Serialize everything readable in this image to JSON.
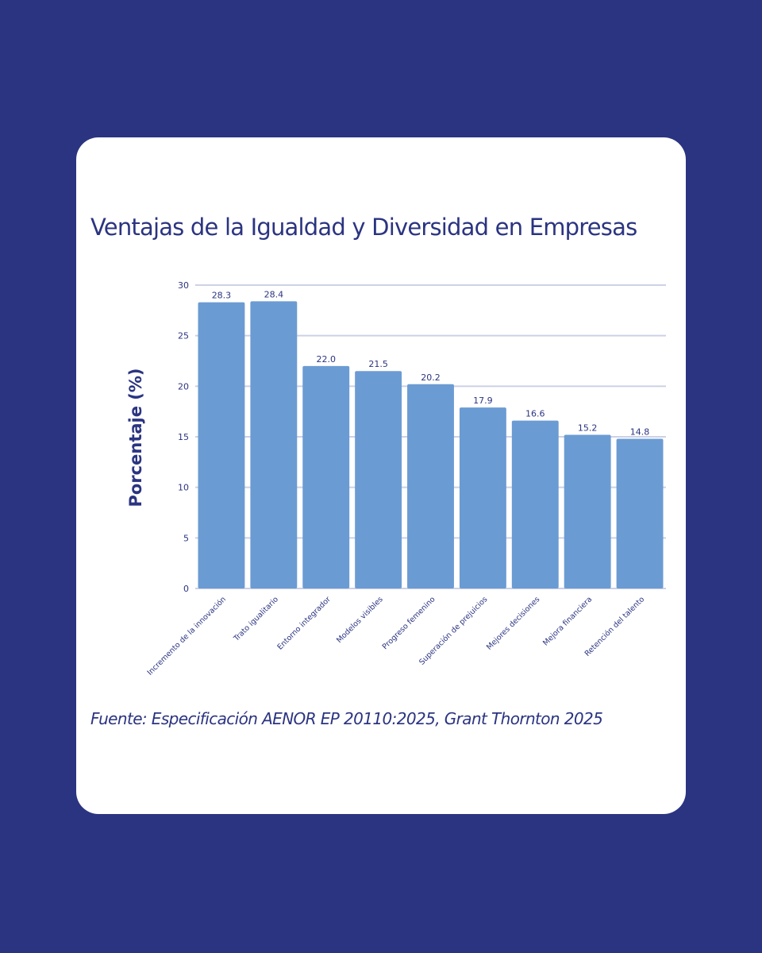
{
  "page": {
    "background": "#2b3481",
    "card_background": "#ffffff"
  },
  "title": "Ventajas de la Igualdad y Diversidad en Empresas",
  "source": "Fuente: Especificación AENOR EP 20110:2025, Grant Thornton 2025",
  "chart_data": {
    "type": "bar",
    "title": "Ventajas de la Igualdad y Diversidad en Empresas",
    "xlabel": "",
    "ylabel": "Porcentaje (%)",
    "ylim": [
      0,
      30
    ],
    "yticks": [
      0,
      5,
      10,
      15,
      20,
      25,
      30
    ],
    "grid": true,
    "categories": [
      "Incremento de la innovación",
      "Trato igualitario",
      "Entorno integrador",
      "Modelos visibles",
      "Progreso femenino",
      "Superación de prejuicios",
      "Mejores decisiones",
      "Mejora financiera",
      "Retención del talento"
    ],
    "values": [
      28.3,
      28.4,
      22.0,
      21.5,
      20.2,
      17.9,
      16.6,
      15.2,
      14.8
    ],
    "value_labels": [
      "28.3",
      "28.4",
      "22.0",
      "21.5",
      "20.2",
      "17.9",
      "16.6",
      "15.2",
      "14.8"
    ],
    "bar_color": "#6b9bd3",
    "text_color": "#2b3481",
    "grid_color": "#ccd1e6"
  }
}
